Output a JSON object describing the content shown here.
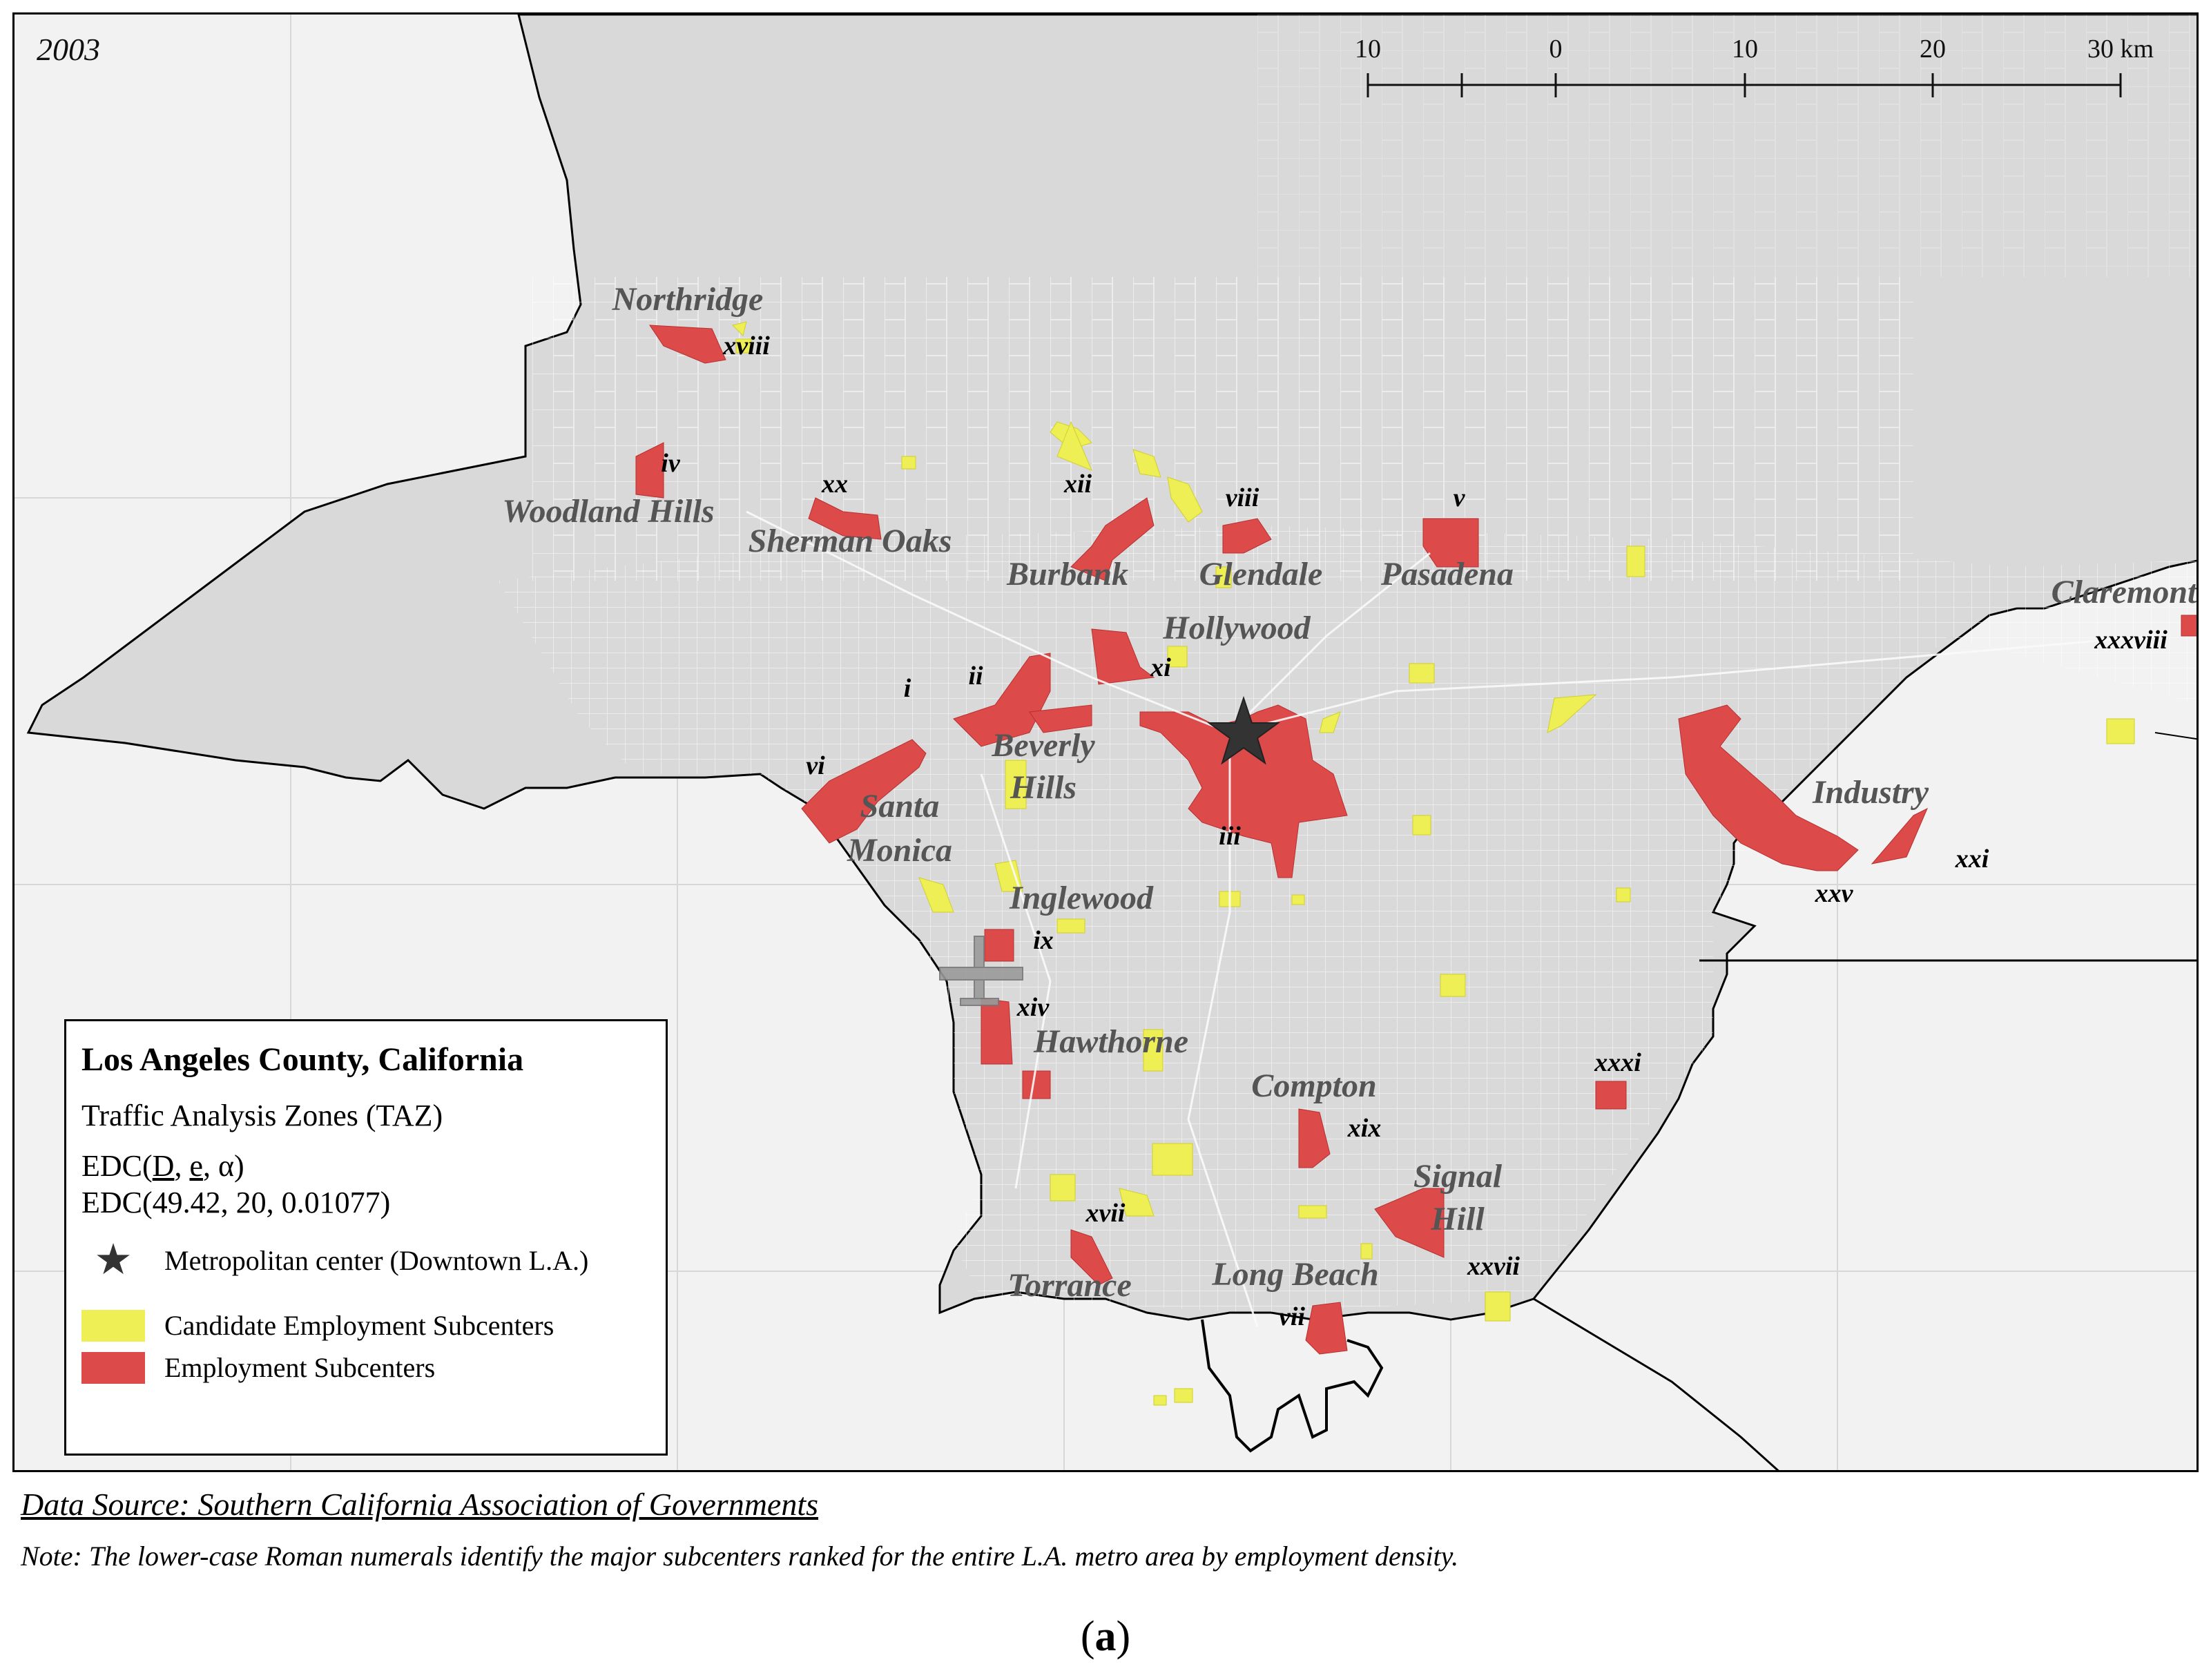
{
  "map": {
    "year": "2003",
    "scale": {
      "ticks": [
        "10",
        "0",
        "10",
        "20",
        "30 km"
      ]
    },
    "cities": [
      {
        "id": "northridge",
        "name": "Northridge"
      },
      {
        "id": "woodland-hills",
        "name": "Woodland Hills"
      },
      {
        "id": "sherman-oaks",
        "name": "Sherman Oaks"
      },
      {
        "id": "burbank",
        "name": "Burbank"
      },
      {
        "id": "glendale",
        "name": "Glendale"
      },
      {
        "id": "pasadena",
        "name": "Pasadena"
      },
      {
        "id": "claremont",
        "name": "Claremont"
      },
      {
        "id": "hollywood",
        "name": "Hollywood"
      },
      {
        "id": "beverly",
        "name": "Beverly"
      },
      {
        "id": "hills",
        "name": "Hills"
      },
      {
        "id": "santa",
        "name": "Santa"
      },
      {
        "id": "monica",
        "name": "Monica"
      },
      {
        "id": "industry",
        "name": "Industry"
      },
      {
        "id": "inglewood",
        "name": "Inglewood"
      },
      {
        "id": "hawthorne",
        "name": "Hawthorne"
      },
      {
        "id": "compton",
        "name": "Compton"
      },
      {
        "id": "signal",
        "name": "Signal"
      },
      {
        "id": "hill",
        "name": "Hill"
      },
      {
        "id": "torrance",
        "name": "Torrance"
      },
      {
        "id": "long-beach",
        "name": "Long Beach"
      }
    ],
    "subcenter_ranks": [
      "xviii",
      "iv",
      "xx",
      "xii",
      "viii",
      "v",
      "xxxviii",
      "xi",
      "ii",
      "i",
      "vi",
      "iii",
      "xxi",
      "xxv",
      "ix",
      "xiv",
      "xxxi",
      "xix",
      "xvii",
      "xxvii",
      "vii"
    ]
  },
  "legend": {
    "title": "Los Angeles County, California",
    "subtitle": "Traffic Analysis Zones (TAZ)",
    "edc_prefix": "EDC(",
    "edc_d": "D",
    "edc_sep1": ", ",
    "edc_e": "e",
    "edc_suffix": ", α)",
    "edc_values": "EDC(49.42, 20, 0.01077)",
    "items": [
      {
        "key": "center",
        "label": "Metropolitan center (Downtown L.A.)",
        "icon": "star-icon",
        "color": "#333333"
      },
      {
        "key": "candidate",
        "label": "Candidate Employment Subcenters",
        "color": "#eeee55"
      },
      {
        "key": "subcenter",
        "label": "Employment Subcenters",
        "color": "#dd4a4a"
      }
    ]
  },
  "footer": {
    "source": "Data Source: Southern California Association of Governments",
    "note": "Note: The lower-case Roman numerals identify the major subcenters ranked for the entire L.A. metro area by employment density.",
    "panel_open": "(",
    "panel_letter": "a",
    "panel_close": ")"
  }
}
